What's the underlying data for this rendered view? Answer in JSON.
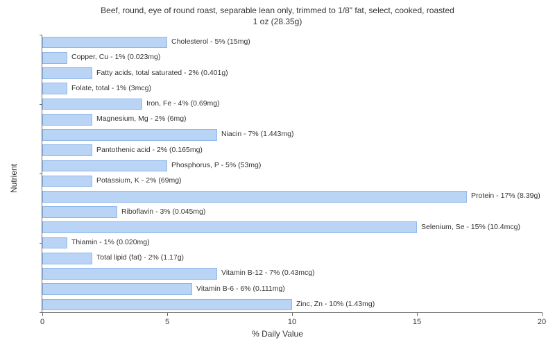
{
  "chart": {
    "type": "horizontal-bar",
    "title_line1": "Beef, round, eye of round roast, separable lean only, trimmed to 1/8\" fat, select, cooked, roasted",
    "title_line2": "1 oz (28.35g)",
    "title_fontsize": 12,
    "xlabel": "% Daily Value",
    "ylabel": "Nutrient",
    "label_fontsize": 12,
    "xlim": [
      0,
      20
    ],
    "xticks": [
      0,
      5,
      10,
      15,
      20
    ],
    "bar_color": "#b9d4f5",
    "bar_border_color": "#8fb8ea",
    "background_color": "#ffffff",
    "axis_color": "#666666",
    "text_color": "#333333",
    "bar_label_fontsize": 10.5,
    "tick_label_fontsize": 11,
    "bars": [
      {
        "label": "Cholesterol - 5% (15mg)",
        "value": 5
      },
      {
        "label": "Copper, Cu - 1% (0.023mg)",
        "value": 1
      },
      {
        "label": "Fatty acids, total saturated - 2% (0.401g)",
        "value": 2
      },
      {
        "label": "Folate, total - 1% (3mcg)",
        "value": 1
      },
      {
        "label": "Iron, Fe - 4% (0.69mg)",
        "value": 4
      },
      {
        "label": "Magnesium, Mg - 2% (6mg)",
        "value": 2
      },
      {
        "label": "Niacin - 7% (1.443mg)",
        "value": 7
      },
      {
        "label": "Pantothenic acid - 2% (0.165mg)",
        "value": 2
      },
      {
        "label": "Phosphorus, P - 5% (53mg)",
        "value": 5
      },
      {
        "label": "Potassium, K - 2% (69mg)",
        "value": 2
      },
      {
        "label": "Protein - 17% (8.39g)",
        "value": 17
      },
      {
        "label": "Riboflavin - 3% (0.045mg)",
        "value": 3
      },
      {
        "label": "Selenium, Se - 15% (10.4mcg)",
        "value": 15
      },
      {
        "label": "Thiamin - 1% (0.020mg)",
        "value": 1
      },
      {
        "label": "Total lipid (fat) - 2% (1.17g)",
        "value": 2
      },
      {
        "label": "Vitamin B-12 - 7% (0.43mcg)",
        "value": 7
      },
      {
        "label": "Vitamin B-6 - 6% (0.111mg)",
        "value": 6
      },
      {
        "label": "Zinc, Zn - 10% (1.43mg)",
        "value": 10
      }
    ]
  }
}
